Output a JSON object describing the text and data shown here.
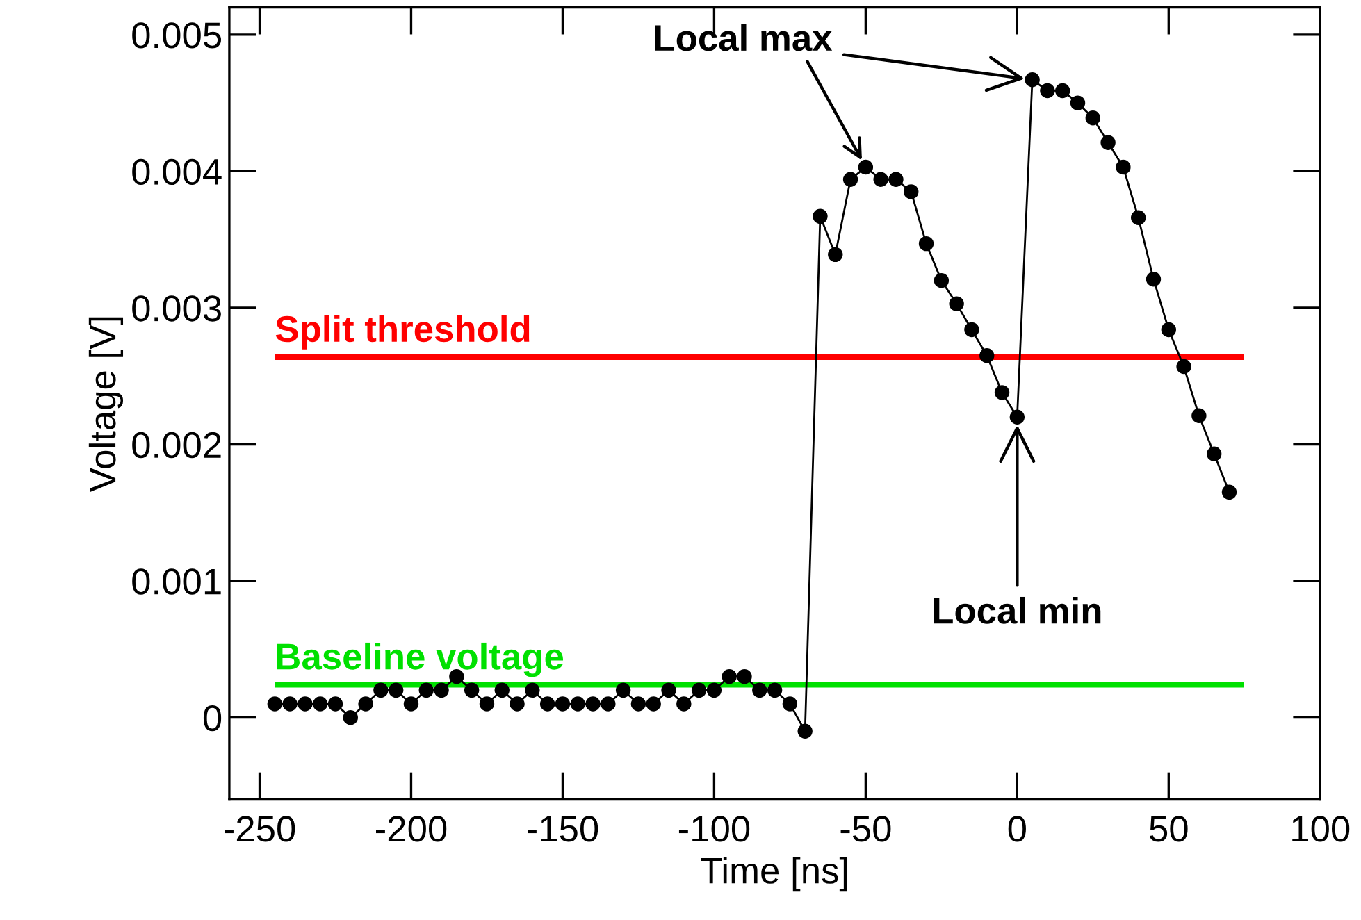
{
  "chart_data": {
    "type": "line",
    "xlabel": "Time [ns]",
    "ylabel": "Voltage [V]",
    "xlim": [
      -260,
      100
    ],
    "ylim": [
      -0.0006,
      0.0052
    ],
    "xticks": [
      -250,
      -200,
      -150,
      -100,
      -50,
      0,
      50,
      100
    ],
    "yticks": [
      0,
      0.001,
      0.002,
      0.003,
      0.004,
      0.005
    ],
    "marker": "circle",
    "line_style": "solid",
    "grid": false,
    "legend": false,
    "series": [
      {
        "color": "#000000",
        "x": [
          -245,
          -240,
          -235,
          -230,
          -225,
          -220,
          -215,
          -210,
          -205,
          -200,
          -195,
          -190,
          -185,
          -180,
          -175,
          -170,
          -165,
          -160,
          -155,
          -150,
          -145,
          -140,
          -135,
          -130,
          -125,
          -120,
          -115,
          -110,
          -105,
          -100,
          -95,
          -90,
          -85,
          -80,
          -75,
          -70,
          -65,
          -60,
          -55,
          -50,
          -45,
          -40,
          -35,
          -30,
          -25,
          -20,
          -15,
          -10,
          -5,
          0,
          5,
          10,
          15,
          20,
          25,
          30,
          35,
          40,
          45,
          50,
          55,
          60,
          65,
          70
        ],
        "values": [
          0.0001,
          0.0001,
          0.0001,
          0.0001,
          0.0001,
          0.0,
          0.0001,
          0.0002,
          0.0002,
          0.0001,
          0.0002,
          0.0002,
          0.0003,
          0.0002,
          0.0001,
          0.0002,
          0.0001,
          0.0002,
          0.0001,
          0.0001,
          0.0001,
          0.0001,
          0.0001,
          0.0002,
          0.0001,
          0.0001,
          0.0002,
          0.0001,
          0.0002,
          0.0002,
          0.0003,
          0.0003,
          0.0002,
          0.0002,
          0.0001,
          -0.0001,
          0.00367,
          0.00339,
          0.00394,
          0.00403,
          0.00394,
          0.00394,
          0.00385,
          0.00347,
          0.0032,
          0.00303,
          0.00284,
          0.00265,
          0.00238,
          0.0022,
          0.00467,
          0.00459,
          0.00459,
          0.0045,
          0.00439,
          0.00421,
          0.00403,
          0.00366,
          0.00321,
          0.00284,
          0.00257,
          0.00221,
          0.00193,
          0.00165
        ]
      }
    ],
    "ref_lines": [
      {
        "axis": "y",
        "value": 0.00264,
        "label": "Split threshold",
        "color": "#ff0000"
      },
      {
        "axis": "y",
        "value": 0.00024,
        "label": "Baseline voltage",
        "color": "#00e000"
      }
    ],
    "annotations": [
      {
        "text": "Local max",
        "x": 5,
        "y": 0.00467
      },
      {
        "text": "Local min",
        "x": 0,
        "y": 0.0022
      }
    ]
  }
}
